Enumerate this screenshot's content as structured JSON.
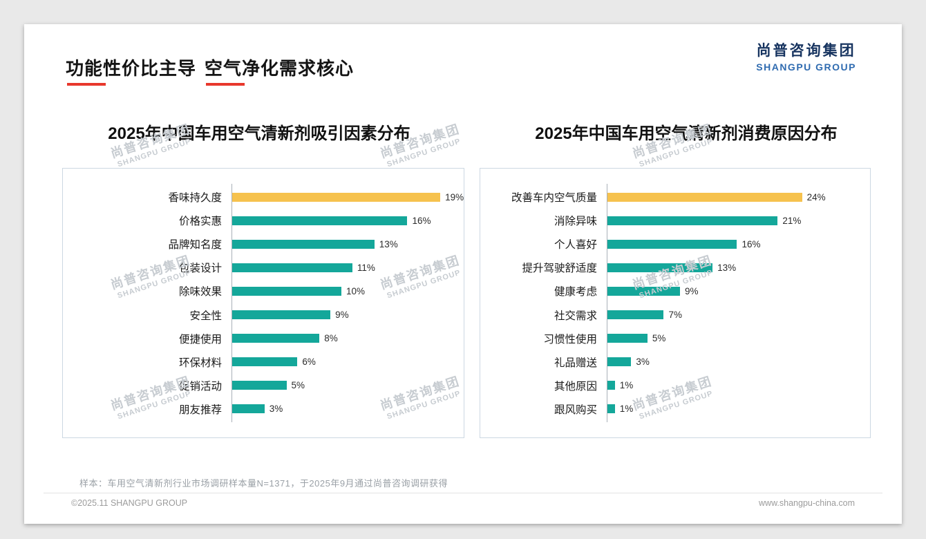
{
  "slide": {
    "title": {
      "part1": "功能性价比主导",
      "part2": "空气净化需求核心"
    },
    "logo": {
      "cn": "尚普咨询集团",
      "en": "SHANGPU GROUP"
    },
    "watermark": {
      "cn": "尚普咨询集团",
      "en": "SHANGPU GROUP"
    },
    "note": "样本：车用空气清新剂行业市场调研样本量N=1371，于2025年9月通过尚普咨询调研获得",
    "footer": {
      "copyright": "©2025.11 SHANGPU GROUP",
      "website": "www.shangpu-china.com"
    }
  },
  "colors": {
    "bar_teal": "#14A79A",
    "bar_highlight_gold": "#F6C24E",
    "title_accent_red": "#E8372C",
    "logo_navy": "#16335F",
    "logo_blue": "#2F6BB0"
  },
  "chart_data": [
    {
      "type": "bar",
      "orientation": "horizontal",
      "title": "2025年中国车用空气清新剂吸引因素分布",
      "categories": [
        "香味持久度",
        "价格实惠",
        "品牌知名度",
        "包装设计",
        "除味效果",
        "安全性",
        "便捷使用",
        "环保材料",
        "促销活动",
        "朋友推荐"
      ],
      "values": [
        19,
        16,
        13,
        11,
        10,
        9,
        8,
        6,
        5,
        3
      ],
      "unit": "%",
      "xlim": [
        0,
        20.5
      ],
      "highlight_index": 0,
      "grid": false,
      "legend": false
    },
    {
      "type": "bar",
      "orientation": "horizontal",
      "title": "2025年中国车用空气清新剂消费原因分布",
      "categories": [
        "改善车内空气质量",
        "消除异味",
        "个人喜好",
        "提升驾驶舒适度",
        "健康考虑",
        "社交需求",
        "习惯性使用",
        "礼品赠送",
        "其他原因",
        "跟风购买"
      ],
      "values": [
        24,
        21,
        16,
        13,
        9,
        7,
        5,
        3,
        1,
        1
      ],
      "unit": "%",
      "xlim": [
        0,
        31.5
      ],
      "highlight_index": 0,
      "grid": false,
      "legend": false
    }
  ]
}
